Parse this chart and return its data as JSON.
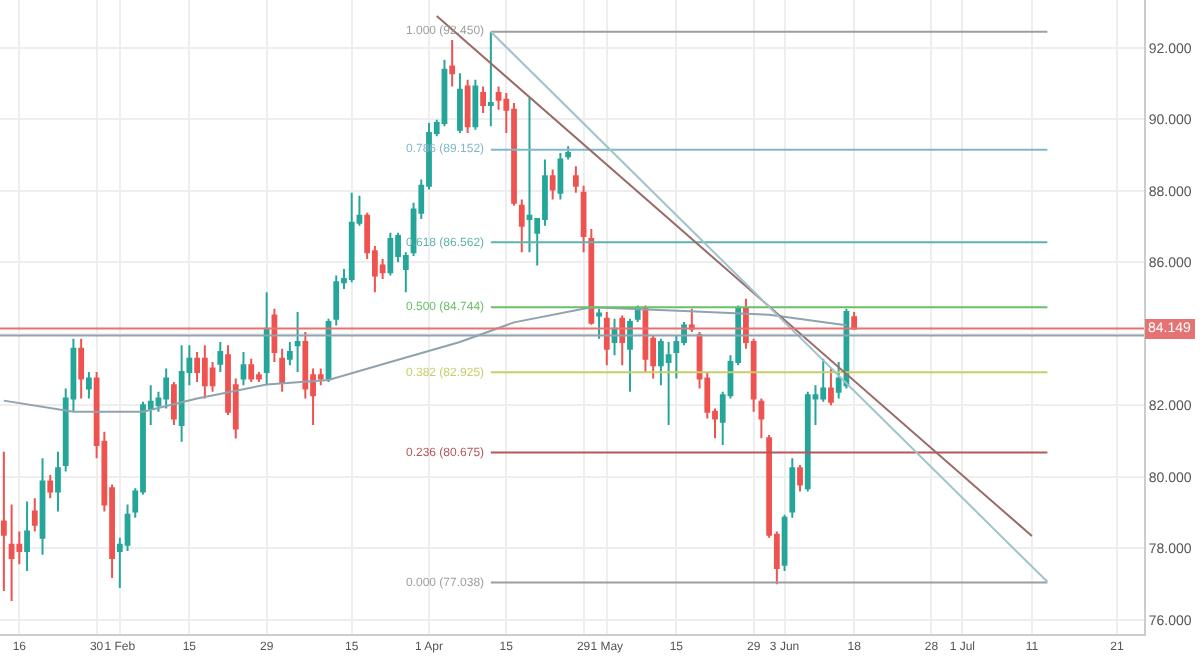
{
  "chart_data": {
    "type": "candlestick",
    "categories": [
      null,
      null,
      "16",
      null,
      null,
      null,
      null,
      null,
      null,
      null,
      null,
      null,
      "30",
      null,
      null,
      "1 Feb",
      null,
      null,
      null,
      null,
      null,
      null,
      null,
      null,
      "15",
      null,
      null,
      null,
      null,
      null,
      null,
      null,
      null,
      null,
      "29",
      null,
      null,
      null,
      null,
      null,
      null,
      null,
      null,
      null,
      null,
      "15",
      null,
      null,
      null,
      null,
      null,
      null,
      null,
      null,
      null,
      "1 Apr",
      null,
      null,
      null,
      null,
      null,
      null,
      null,
      null,
      null,
      "15",
      null,
      null,
      null,
      null,
      null,
      null,
      null,
      null,
      null,
      "29",
      null,
      null,
      "1 May",
      null,
      null,
      null,
      null,
      null,
      null,
      null,
      null,
      "15",
      null,
      null,
      null,
      null,
      null,
      null,
      null,
      null,
      null,
      "29",
      null,
      null,
      null,
      "3 Jun",
      null,
      null,
      null,
      null,
      null,
      null,
      null,
      null,
      "18",
      null,
      null,
      null,
      null,
      null,
      null,
      null,
      null,
      null,
      "28",
      null,
      null,
      null,
      "1 Jul",
      null,
      null,
      null,
      null,
      null,
      null,
      null,
      null,
      "11",
      null,
      null,
      null,
      null,
      null,
      null,
      null,
      null,
      null,
      null,
      "21",
      null,
      null,
      null
    ],
    "ohlc": [
      [
        78.75,
        80.7,
        76.8,
        78.38
      ],
      [
        78.1,
        79.22,
        76.52,
        77.73
      ],
      [
        78.1,
        78.47,
        77.55,
        77.92
      ],
      [
        77.92,
        79.31,
        77.36,
        78.47
      ],
      [
        79.03,
        79.4,
        78.47,
        78.66
      ],
      [
        78.29,
        80.52,
        77.82,
        79.87
      ],
      [
        79.87,
        80.05,
        79.4,
        79.59
      ],
      [
        79.59,
        80.7,
        79.03,
        80.24
      ],
      [
        80.33,
        82.47,
        80.15,
        82.19
      ],
      [
        82.19,
        83.86,
        81.82,
        83.58
      ],
      [
        83.58,
        83.86,
        82.19,
        82.75
      ],
      [
        82.47,
        82.93,
        82.19,
        82.75
      ],
      [
        82.75,
        82.93,
        80.52,
        80.89
      ],
      [
        80.98,
        81.26,
        79.03,
        79.22
      ],
      [
        79.68,
        79.78,
        77.17,
        77.73
      ],
      [
        77.92,
        78.29,
        76.89,
        78.1
      ],
      [
        78.1,
        79.22,
        77.92,
        78.94
      ],
      [
        79.03,
        79.68,
        78.85,
        79.59
      ],
      [
        79.59,
        82.1,
        79.5,
        82.0
      ],
      [
        81.91,
        82.56,
        81.45,
        82.1
      ],
      [
        82.0,
        82.38,
        81.82,
        82.19
      ],
      [
        82.19,
        83.03,
        81.91,
        82.75
      ],
      [
        82.56,
        82.65,
        81.45,
        81.63
      ],
      [
        81.45,
        83.68,
        80.98,
        82.93
      ],
      [
        82.93,
        83.68,
        82.56,
        83.3
      ],
      [
        83.3,
        83.49,
        82.65,
        82.93
      ],
      [
        83.3,
        83.68,
        82.19,
        82.56
      ],
      [
        83.03,
        83.21,
        82.38,
        82.56
      ],
      [
        83.16,
        83.77,
        82.93,
        83.49
      ],
      [
        83.4,
        83.68,
        81.73,
        81.82
      ],
      [
        82.56,
        82.75,
        81.07,
        81.35
      ],
      [
        82.75,
        83.49,
        82.56,
        83.12
      ],
      [
        83.12,
        83.3,
        82.65,
        82.75
      ],
      [
        82.84,
        82.93,
        82.65,
        82.75
      ],
      [
        82.93,
        85.16,
        82.56,
        84.14
      ],
      [
        84.51,
        84.7,
        83.21,
        83.49
      ],
      [
        83.3,
        83.58,
        82.38,
        82.65
      ],
      [
        83.3,
        83.77,
        83.12,
        83.49
      ],
      [
        83.68,
        84.61,
        82.93,
        83.77
      ],
      [
        83.77,
        84.05,
        82.19,
        82.47
      ],
      [
        82.84,
        83.03,
        81.45,
        82.28
      ],
      [
        82.84,
        83.03,
        82.56,
        82.75
      ],
      [
        82.75,
        84.42,
        82.65,
        84.33
      ],
      [
        84.42,
        85.63,
        84.23,
        85.44
      ],
      [
        85.44,
        85.81,
        85.25,
        85.53
      ],
      [
        85.53,
        87.95,
        85.44,
        87.11
      ],
      [
        87.11,
        87.86,
        87.02,
        87.3
      ],
      [
        87.3,
        87.39,
        86.09,
        86.28
      ],
      [
        86.31,
        86.46,
        85.16,
        85.63
      ],
      [
        85.91,
        86.09,
        85.53,
        85.72
      ],
      [
        85.72,
        86.83,
        85.63,
        86.65
      ],
      [
        86.18,
        86.83,
        86.0,
        86.74
      ],
      [
        85.81,
        86.28,
        85.16,
        86.18
      ],
      [
        86.28,
        87.67,
        86.18,
        87.48
      ],
      [
        87.39,
        88.32,
        87.21,
        88.14
      ],
      [
        88.14,
        89.9,
        88.04,
        89.62
      ],
      [
        89.62,
        89.99,
        89.53,
        89.9
      ],
      [
        89.9,
        91.67,
        89.81,
        91.39
      ],
      [
        91.48,
        92.22,
        90.92,
        91.29
      ],
      [
        89.71,
        91.29,
        89.62,
        90.83
      ],
      [
        90.92,
        91.11,
        89.62,
        89.81
      ],
      [
        89.81,
        91.11,
        89.71,
        90.92
      ],
      [
        90.74,
        90.92,
        90.18,
        90.4
      ],
      [
        90.4,
        92.45,
        89.81,
        90.46
      ],
      [
        90.74,
        90.92,
        90.27,
        90.55
      ],
      [
        90.55,
        90.74,
        89.62,
        90.27
      ],
      [
        90.27,
        90.46,
        87.58,
        87.67
      ],
      [
        87.58,
        87.76,
        86.28,
        87.02
      ],
      [
        87.21,
        90.61,
        86.28,
        87.3
      ],
      [
        86.83,
        87.21,
        85.91,
        87.21
      ],
      [
        87.21,
        88.88,
        87.02,
        88.41
      ],
      [
        88.41,
        88.6,
        87.76,
        88.04
      ],
      [
        87.95,
        89.06,
        87.76,
        88.88
      ],
      [
        88.97,
        89.25,
        88.88,
        89.06
      ],
      [
        88.41,
        88.69,
        87.95,
        88.14
      ],
      [
        87.95,
        88.14,
        86.28,
        86.74
      ],
      [
        86.65,
        86.93,
        84.25,
        84.31
      ],
      [
        84.51,
        84.7,
        83.86,
        84.57
      ],
      [
        84.42,
        84.61,
        83.12,
        83.58
      ],
      [
        83.77,
        84.42,
        83.4,
        84.14
      ],
      [
        84.42,
        84.51,
        83.12,
        83.77
      ],
      [
        83.58,
        84.42,
        82.38,
        84.33
      ],
      [
        84.42,
        84.79,
        84.33,
        84.7
      ],
      [
        84.7,
        84.79,
        82.93,
        83.3
      ],
      [
        83.86,
        83.96,
        82.75,
        83.12
      ],
      [
        83.12,
        83.86,
        82.56,
        83.77
      ],
      [
        83.21,
        83.77,
        81.45,
        83.4
      ],
      [
        83.49,
        83.96,
        82.75,
        83.77
      ],
      [
        83.77,
        84.33,
        83.68,
        84.23
      ],
      [
        84.23,
        84.7,
        84.05,
        84.14
      ],
      [
        83.96,
        84.05,
        82.47,
        82.75
      ],
      [
        82.75,
        82.93,
        81.63,
        81.82
      ],
      [
        81.82,
        81.91,
        81.08,
        81.63
      ],
      [
        81.54,
        82.38,
        80.89,
        82.28
      ],
      [
        82.28,
        83.4,
        82.19,
        83.21
      ],
      [
        83.21,
        84.79,
        83.12,
        84.7
      ],
      [
        84.7,
        84.98,
        83.58,
        83.77
      ],
      [
        83.77,
        83.86,
        81.82,
        82.19
      ],
      [
        82.1,
        82.19,
        81.08,
        81.63
      ],
      [
        81.08,
        81.17,
        78.29,
        78.38
      ],
      [
        78.38,
        78.47,
        76.99,
        77.45
      ],
      [
        77.54,
        78.94,
        77.36,
        78.85
      ],
      [
        79.03,
        80.52,
        78.85,
        80.24
      ],
      [
        80.24,
        80.33,
        79.59,
        79.78
      ],
      [
        79.68,
        82.38,
        79.59,
        82.28
      ],
      [
        82.19,
        82.56,
        81.45,
        82.28
      ],
      [
        82.19,
        83.3,
        82.1,
        82.47
      ],
      [
        82.47,
        83.03,
        82.0,
        82.1
      ],
      [
        82.38,
        83.21,
        82.19,
        82.75
      ],
      [
        82.56,
        84.7,
        82.47,
        84.61
      ],
      [
        84.46,
        84.61,
        84.14,
        84.14
      ],
      null,
      null,
      null,
      null,
      null,
      null,
      null,
      null,
      null,
      null,
      null,
      null,
      null,
      null,
      null,
      null,
      null,
      null,
      null,
      null,
      null,
      null,
      null,
      null,
      null,
      null,
      null,
      null,
      null,
      null,
      null,
      null,
      null,
      null,
      null,
      null,
      null
    ],
    "colors": [
      "#ef5350",
      "#ef5350",
      "#ef5350",
      "#26a69a",
      "#ef5350",
      "#26a69a",
      "#ef5350",
      "#26a69a",
      "#26a69a",
      "#26a69a",
      "#ef5350",
      "#26a69a",
      "#ef5350",
      "#ef5350",
      "#ef5350",
      "#26a69a",
      "#26a69a",
      "#26a69a",
      "#26a69a",
      "#26a69a",
      "#26a69a",
      "#26a69a",
      "#ef5350",
      "#26a69a",
      "#26a69a",
      "#ef5350",
      "#ef5350",
      "#ef5350",
      "#26a69a",
      "#ef5350",
      "#ef5350",
      "#26a69a",
      "#ef5350",
      "#ef5350",
      "#26a69a",
      "#ef5350",
      "#ef5350",
      "#26a69a",
      "#26a69a",
      "#ef5350",
      "#ef5350",
      "#ef5350",
      "#26a69a",
      "#26a69a",
      "#26a69a",
      "#26a69a",
      "#26a69a",
      "#ef5350",
      "#ef5350",
      "#ef5350",
      "#26a69a",
      "#26a69a",
      "#26a69a",
      "#26a69a",
      "#26a69a",
      "#26a69a",
      "#26a69a",
      "#26a69a",
      "#ef5350",
      "#26a69a",
      "#ef5350",
      "#26a69a",
      "#ef5350",
      "#26a69a",
      "#ef5350",
      "#ef5350",
      "#ef5350",
      "#ef5350",
      "#26a69a",
      "#26a69a",
      "#26a69a",
      "#ef5350",
      "#26a69a",
      "#26a69a",
      "#ef5350",
      "#ef5350",
      "#ef5350",
      "#26a69a",
      "#ef5350",
      "#26a69a",
      "#ef5350",
      "#26a69a",
      "#26a69a",
      "#ef5350",
      "#ef5350",
      "#26a69a",
      "#26a69a",
      "#26a69a",
      "#26a69a",
      "#ef5350",
      "#ef5350",
      "#ef5350",
      "#ef5350",
      "#26a69a",
      "#26a69a",
      "#26a69a",
      "#ef5350",
      "#ef5350",
      "#ef5350",
      "#ef5350",
      "#ef5350",
      "#26a69a",
      "#26a69a",
      "#ef5350",
      "#26a69a",
      "#26a69a",
      "#26a69a",
      "#ef5350",
      "#26a69a",
      "#26a69a",
      "#ef5350",
      null,
      null,
      null,
      null,
      null,
      null,
      null,
      null,
      null,
      null,
      null,
      null,
      null,
      null,
      null,
      null,
      null,
      null,
      null,
      null,
      null,
      null,
      null,
      null,
      null,
      null,
      null,
      null,
      null,
      null,
      null,
      null,
      null,
      null,
      null,
      null,
      null
    ],
    "series": [
      {
        "type": "line",
        "color": "#8fa3ad",
        "values": [
          82.13,
          null,
          null,
          null,
          null,
          null,
          null,
          null,
          null,
          81.82,
          null,
          null,
          null,
          null,
          null,
          null,
          null,
          null,
          81.82,
          null,
          null,
          null,
          null,
          null,
          null,
          82.19,
          null,
          null,
          null,
          null,
          null,
          null,
          null,
          null,
          82.58,
          null,
          null,
          null,
          null,
          null,
          null,
          null,
          82.71,
          null,
          null,
          null,
          null,
          null,
          null,
          null,
          83.21,
          null,
          null,
          null,
          null,
          null,
          null,
          null,
          null,
          83.77,
          null,
          null,
          null,
          null,
          null,
          null,
          84.32,
          null,
          null,
          null,
          null,
          null,
          null,
          null,
          null,
          null,
          84.74,
          null,
          null,
          null,
          null,
          null,
          null,
          null,
          null,
          null,
          null,
          null,
          84.64,
          null,
          null,
          null,
          null,
          null,
          null,
          null,
          null,
          null,
          null,
          84.53,
          null,
          null,
          null,
          null,
          null,
          null,
          null,
          null,
          null,
          84.24,
          null,
          null,
          null,
          null,
          null,
          null,
          null,
          null,
          null,
          null,
          null,
          null,
          null,
          null,
          null,
          null,
          null,
          null,
          null,
          null,
          null,
          null,
          null,
          null,
          null,
          null,
          null,
          null,
          null,
          null,
          null,
          null,
          null,
          null,
          null,
          null,
          null,
          null
        ]
      },
      {
        "type": "line",
        "name": "1.000 (92.450)",
        "color": "#9e9e9e",
        "values": [
          null,
          null,
          null,
          null,
          null,
          null,
          null,
          null,
          null,
          null,
          null,
          null,
          null,
          null,
          null,
          null,
          null,
          null,
          null,
          null,
          null,
          null,
          null,
          null,
          null,
          null,
          null,
          null,
          null,
          null,
          null,
          null,
          null,
          null,
          null,
          null,
          null,
          null,
          null,
          null,
          null,
          null,
          null,
          null,
          null,
          null,
          null,
          null,
          null,
          null,
          null,
          null,
          null,
          null,
          null,
          null,
          null,
          null,
          null,
          null,
          null,
          null,
          null,
          92.45,
          null,
          null,
          null,
          null,
          null,
          null,
          null,
          null,
          null,
          null,
          null,
          null,
          null,
          null,
          null,
          null,
          null,
          null,
          null,
          null,
          null,
          null,
          null,
          null,
          null,
          null,
          null,
          null,
          null,
          null,
          null,
          null,
          null,
          null,
          null,
          null,
          null,
          null,
          null,
          null,
          null,
          null,
          null,
          null,
          null,
          null,
          null,
          null,
          null,
          null,
          null,
          null,
          null,
          null,
          null,
          null,
          null,
          null,
          null,
          null,
          null,
          null,
          null,
          null,
          null,
          null,
          null,
          null,
          null,
          null,
          null,
          92.45,
          null,
          null,
          null,
          null,
          null,
          null,
          null,
          null,
          null,
          null,
          null,
          null
        ]
      },
      {
        "type": "line",
        "name": "0.786 (89.152)",
        "color": "#7fb8c9",
        "values": [
          null,
          null,
          null,
          null,
          null,
          null,
          null,
          null,
          null,
          null,
          null,
          null,
          null,
          null,
          null,
          null,
          null,
          null,
          null,
          null,
          null,
          null,
          null,
          null,
          null,
          null,
          null,
          null,
          null,
          null,
          null,
          null,
          null,
          null,
          null,
          null,
          null,
          null,
          null,
          null,
          null,
          null,
          null,
          null,
          null,
          null,
          null,
          null,
          null,
          null,
          null,
          null,
          null,
          null,
          null,
          null,
          null,
          null,
          null,
          null,
          null,
          null,
          null,
          89.152,
          null,
          null,
          null,
          null,
          null,
          null,
          null,
          null,
          null,
          null,
          null,
          null,
          null,
          null,
          null,
          null,
          null,
          null,
          null,
          null,
          null,
          null,
          null,
          null,
          null,
          null,
          null,
          null,
          null,
          null,
          null,
          null,
          null,
          null,
          null,
          null,
          null,
          null,
          null,
          null,
          null,
          null,
          null,
          null,
          null,
          null,
          null,
          null,
          null,
          null,
          null,
          null,
          null,
          null,
          null,
          null,
          null,
          null,
          null,
          null,
          null,
          null,
          null,
          null,
          null,
          null,
          null,
          null,
          null,
          null,
          null,
          89.152,
          null,
          null,
          null,
          null,
          null,
          null,
          null,
          null,
          null,
          null,
          null,
          null
        ]
      },
      {
        "type": "line",
        "name": "0.618 (86.562)",
        "color": "#5fb3ad",
        "values": [
          null,
          null,
          null,
          null,
          null,
          null,
          null,
          null,
          null,
          null,
          null,
          null,
          null,
          null,
          null,
          null,
          null,
          null,
          null,
          null,
          null,
          null,
          null,
          null,
          null,
          null,
          null,
          null,
          null,
          null,
          null,
          null,
          null,
          null,
          null,
          null,
          null,
          null,
          null,
          null,
          null,
          null,
          null,
          null,
          null,
          null,
          null,
          null,
          null,
          null,
          null,
          null,
          null,
          null,
          null,
          null,
          null,
          null,
          null,
          null,
          null,
          null,
          null,
          86.562,
          null,
          null,
          null,
          null,
          null,
          null,
          null,
          null,
          null,
          null,
          null,
          null,
          null,
          null,
          null,
          null,
          null,
          null,
          null,
          null,
          null,
          null,
          null,
          null,
          null,
          null,
          null,
          null,
          null,
          null,
          null,
          null,
          null,
          null,
          null,
          null,
          null,
          null,
          null,
          null,
          null,
          null,
          null,
          null,
          null,
          null,
          null,
          null,
          null,
          null,
          null,
          null,
          null,
          null,
          null,
          null,
          null,
          null,
          null,
          null,
          null,
          null,
          null,
          null,
          null,
          null,
          null,
          null,
          null,
          null,
          null,
          86.562,
          null,
          null,
          null,
          null,
          null,
          null,
          null,
          null,
          null,
          null,
          null,
          null
        ]
      },
      {
        "type": "line",
        "name": "0.500 (84.744)",
        "color": "#6abf69",
        "values": [
          null,
          null,
          null,
          null,
          null,
          null,
          null,
          null,
          null,
          null,
          null,
          null,
          null,
          null,
          null,
          null,
          null,
          null,
          null,
          null,
          null,
          null,
          null,
          null,
          null,
          null,
          null,
          null,
          null,
          null,
          null,
          null,
          null,
          null,
          null,
          null,
          null,
          null,
          null,
          null,
          null,
          null,
          null,
          null,
          null,
          null,
          null,
          null,
          null,
          null,
          null,
          null,
          null,
          null,
          null,
          null,
          null,
          null,
          null,
          null,
          null,
          null,
          null,
          84.744,
          null,
          null,
          null,
          null,
          null,
          null,
          null,
          null,
          null,
          null,
          null,
          null,
          null,
          null,
          null,
          null,
          null,
          null,
          null,
          null,
          null,
          null,
          null,
          null,
          null,
          null,
          null,
          null,
          null,
          null,
          null,
          null,
          null,
          null,
          null,
          null,
          null,
          null,
          null,
          null,
          null,
          null,
          null,
          null,
          null,
          null,
          null,
          null,
          null,
          null,
          null,
          null,
          null,
          null,
          null,
          null,
          null,
          null,
          null,
          null,
          null,
          null,
          null,
          null,
          null,
          null,
          null,
          null,
          null,
          null,
          null,
          84.744,
          null,
          null,
          null,
          null,
          null,
          null,
          null,
          null,
          null,
          null,
          null,
          null
        ]
      },
      {
        "type": "line",
        "name": "0.382 (82.925)",
        "color": "#c5cf6a",
        "values": [
          null,
          null,
          null,
          null,
          null,
          null,
          null,
          null,
          null,
          null,
          null,
          null,
          null,
          null,
          null,
          null,
          null,
          null,
          null,
          null,
          null,
          null,
          null,
          null,
          null,
          null,
          null,
          null,
          null,
          null,
          null,
          null,
          null,
          null,
          null,
          null,
          null,
          null,
          null,
          null,
          null,
          null,
          null,
          null,
          null,
          null,
          null,
          null,
          null,
          null,
          null,
          null,
          null,
          null,
          null,
          null,
          null,
          null,
          null,
          null,
          null,
          null,
          null,
          82.925,
          null,
          null,
          null,
          null,
          null,
          null,
          null,
          null,
          null,
          null,
          null,
          null,
          null,
          null,
          null,
          null,
          null,
          null,
          null,
          null,
          null,
          null,
          null,
          null,
          null,
          null,
          null,
          null,
          null,
          null,
          null,
          null,
          null,
          null,
          null,
          null,
          null,
          null,
          null,
          null,
          null,
          null,
          null,
          null,
          null,
          null,
          null,
          null,
          null,
          null,
          null,
          null,
          null,
          null,
          null,
          null,
          null,
          null,
          null,
          null,
          null,
          null,
          null,
          null,
          null,
          null,
          null,
          null,
          null,
          null,
          null,
          82.925,
          null,
          null,
          null,
          null,
          null,
          null,
          null,
          null,
          null,
          null,
          null,
          null
        ]
      },
      {
        "type": "line",
        "name": "0.236 (80.675)",
        "color": "#b5565a",
        "values": [
          null,
          null,
          null,
          null,
          null,
          null,
          null,
          null,
          null,
          null,
          null,
          null,
          null,
          null,
          null,
          null,
          null,
          null,
          null,
          null,
          null,
          null,
          null,
          null,
          null,
          null,
          null,
          null,
          null,
          null,
          null,
          null,
          null,
          null,
          null,
          null,
          null,
          null,
          null,
          null,
          null,
          null,
          null,
          null,
          null,
          null,
          null,
          null,
          null,
          null,
          null,
          null,
          null,
          null,
          null,
          null,
          null,
          null,
          null,
          null,
          null,
          null,
          null,
          80.675,
          null,
          null,
          null,
          null,
          null,
          null,
          null,
          null,
          null,
          null,
          null,
          null,
          null,
          null,
          null,
          null,
          null,
          null,
          null,
          null,
          null,
          null,
          null,
          null,
          null,
          null,
          null,
          null,
          null,
          null,
          null,
          null,
          null,
          null,
          null,
          null,
          null,
          null,
          null,
          null,
          null,
          null,
          null,
          null,
          null,
          null,
          null,
          null,
          null,
          null,
          null,
          null,
          null,
          null,
          null,
          null,
          null,
          null,
          null,
          null,
          null,
          null,
          null,
          null,
          null,
          null,
          null,
          null,
          null,
          null,
          null,
          80.675,
          null,
          null,
          null,
          null,
          null,
          null,
          null,
          null,
          null,
          null,
          null,
          null
        ]
      },
      {
        "type": "line",
        "name": "0.000 (77.038)",
        "color": "#9e9e9e",
        "values": [
          null,
          null,
          null,
          null,
          null,
          null,
          null,
          null,
          null,
          null,
          null,
          null,
          null,
          null,
          null,
          null,
          null,
          null,
          null,
          null,
          null,
          null,
          null,
          null,
          null,
          null,
          null,
          null,
          null,
          null,
          null,
          null,
          null,
          null,
          null,
          null,
          null,
          null,
          null,
          null,
          null,
          null,
          null,
          null,
          null,
          null,
          null,
          null,
          null,
          null,
          null,
          null,
          null,
          null,
          null,
          null,
          null,
          null,
          null,
          null,
          null,
          null,
          null,
          77.038,
          null,
          null,
          null,
          null,
          null,
          null,
          null,
          null,
          null,
          null,
          null,
          null,
          null,
          null,
          null,
          null,
          null,
          null,
          null,
          null,
          null,
          null,
          null,
          null,
          null,
          null,
          null,
          null,
          null,
          null,
          null,
          null,
          null,
          null,
          null,
          null,
          null,
          null,
          null,
          null,
          null,
          null,
          null,
          null,
          null,
          null,
          null,
          null,
          null,
          null,
          null,
          null,
          null,
          null,
          null,
          null,
          null,
          null,
          null,
          null,
          null,
          null,
          null,
          null,
          null,
          null,
          null,
          null,
          null,
          null,
          null,
          77.038,
          null,
          null,
          null,
          null,
          null,
          null,
          null,
          null,
          null,
          null,
          null,
          null
        ]
      },
      {
        "type": "line",
        "color": "#9a6b66",
        "values": [
          null,
          null,
          null,
          null,
          null,
          null,
          null,
          null,
          null,
          null,
          null,
          null,
          null,
          null,
          null,
          null,
          null,
          null,
          null,
          null,
          null,
          null,
          null,
          null,
          null,
          null,
          null,
          null,
          null,
          null,
          null,
          null,
          null,
          null,
          null,
          null,
          null,
          null,
          null,
          null,
          null,
          null,
          null,
          null,
          null,
          null,
          null,
          null,
          null,
          null,
          null,
          null,
          null,
          null,
          null,
          null,
          92.89,
          null,
          null,
          null,
          null,
          null,
          null,
          null,
          null,
          null,
          null,
          null,
          null,
          null,
          null,
          null,
          null,
          null,
          null,
          null,
          null,
          null,
          null,
          null,
          null,
          null,
          null,
          null,
          null,
          null,
          null,
          null,
          null,
          null,
          null,
          null,
          null,
          null,
          null,
          null,
          null,
          null,
          null,
          null,
          null,
          null,
          null,
          null,
          null,
          null,
          null,
          null,
          null,
          null,
          null,
          null,
          null,
          null,
          null,
          null,
          null,
          null,
          null,
          null,
          null,
          null,
          null,
          null,
          null,
          null,
          null,
          null,
          null,
          null,
          null,
          null,
          null,
          78.34,
          null,
          null,
          null,
          null,
          null,
          null,
          null,
          null,
          null,
          null,
          null,
          null,
          null,
          null
        ]
      },
      {
        "type": "line",
        "color": "#9fc3cc",
        "values": [
          null,
          null,
          null,
          null,
          null,
          null,
          null,
          null,
          null,
          null,
          null,
          null,
          null,
          null,
          null,
          null,
          null,
          null,
          null,
          null,
          null,
          null,
          null,
          null,
          null,
          null,
          null,
          null,
          null,
          null,
          null,
          null,
          null,
          null,
          null,
          null,
          null,
          null,
          null,
          null,
          null,
          null,
          null,
          null,
          null,
          null,
          null,
          null,
          null,
          null,
          null,
          null,
          null,
          null,
          null,
          null,
          null,
          null,
          null,
          null,
          null,
          null,
          null,
          92.45,
          null,
          null,
          null,
          null,
          null,
          null,
          null,
          null,
          null,
          null,
          null,
          null,
          null,
          null,
          null,
          null,
          null,
          null,
          null,
          null,
          null,
          null,
          null,
          null,
          null,
          null,
          null,
          null,
          null,
          null,
          null,
          null,
          null,
          null,
          null,
          null,
          null,
          null,
          null,
          null,
          null,
          null,
          null,
          null,
          null,
          null,
          null,
          null,
          null,
          null,
          null,
          null,
          null,
          null,
          null,
          null,
          null,
          null,
          null,
          null,
          null,
          null,
          null,
          null,
          null,
          null,
          null,
          null,
          null,
          null,
          null,
          77.06,
          null,
          null,
          null,
          null,
          null,
          null,
          null,
          null,
          null,
          null,
          null,
          null
        ]
      }
    ],
    "ref_lines": [
      {
        "axis": "y",
        "value": 84.149,
        "label": "84.149",
        "color": "#e57373"
      },
      {
        "axis": "y",
        "value": 83.95,
        "color": "#90a4ae"
      }
    ],
    "ylim": [
      75.6,
      93.34
    ],
    "yticks": [
      {
        "value": 76,
        "label": "76.000"
      },
      {
        "value": 78,
        "label": "78.000"
      },
      {
        "value": 80,
        "label": "80.000"
      },
      {
        "value": 82,
        "label": "82.000"
      },
      {
        "value": 84,
        "label": null
      },
      {
        "value": 86,
        "label": "86.000"
      },
      {
        "value": 88,
        "label": "88.000"
      },
      {
        "value": 90,
        "label": "90.000"
      },
      {
        "value": 92,
        "label": "92.000"
      }
    ],
    "grid": true
  }
}
